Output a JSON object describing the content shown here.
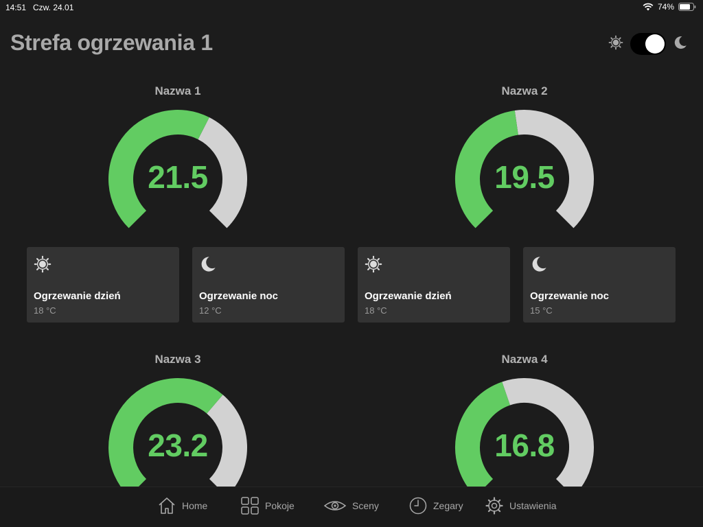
{
  "status_bar": {
    "time": "14:51",
    "date": "Czw. 24.01",
    "battery": "74%"
  },
  "header": {
    "title": "Strefa ogrzewania 1",
    "mode_toggle": {
      "left_icon": "sun-icon",
      "right_icon": "moon-icon",
      "state": "on"
    }
  },
  "gauges": [
    {
      "name": "Nazwa 1",
      "value": "21.5",
      "fill_fraction": 0.6
    },
    {
      "name": "Nazwa 2",
      "value": "19.5",
      "fill_fraction": 0.47
    },
    {
      "name": "Nazwa 3",
      "value": "23.2",
      "fill_fraction": 0.65
    },
    {
      "name": "Nazwa 4",
      "value": "16.8",
      "fill_fraction": 0.43
    }
  ],
  "cards": [
    {
      "icon": "sun-icon",
      "title": "Ogrzewanie dzień",
      "temp": "18 °C"
    },
    {
      "icon": "moon-icon",
      "title": "Ogrzewanie noc",
      "temp": "12 °C"
    },
    {
      "icon": "sun-icon",
      "title": "Ogrzewanie dzień",
      "temp": "18 °C"
    },
    {
      "icon": "moon-icon",
      "title": "Ogrzewanie noc",
      "temp": "15 °C"
    }
  ],
  "nav": [
    {
      "icon": "home-icon",
      "label": "Home"
    },
    {
      "icon": "grid-icon",
      "label": "Pokoje"
    },
    {
      "icon": "eye-icon",
      "label": "Sceny"
    },
    {
      "icon": "clock-icon",
      "label": "Zegary"
    },
    {
      "icon": "gear-icon",
      "label": "Ustawienia"
    }
  ],
  "colors": {
    "background": "#1c1c1c",
    "accent_green": "#62cc62",
    "gauge_track": "#d2d2d2",
    "card_bg": "#333333",
    "title_grey": "#a9a9a9"
  }
}
